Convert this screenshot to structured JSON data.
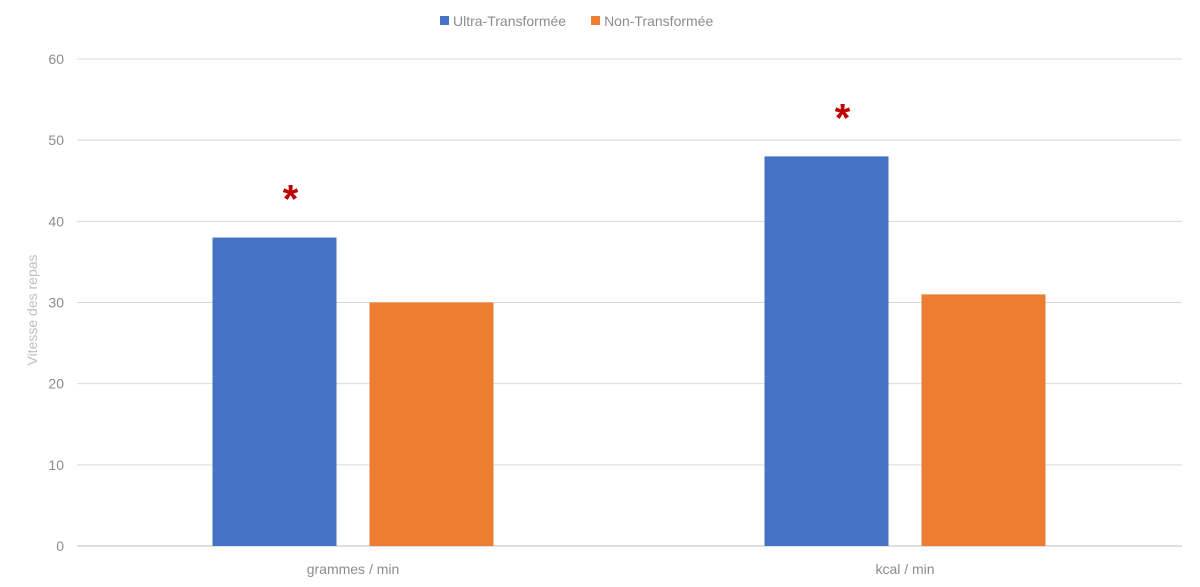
{
  "chart_data": {
    "type": "bar",
    "categories": [
      "grammes / min",
      "kcal / min"
    ],
    "series": [
      {
        "name": "Ultra-Transformée",
        "values": [
          38,
          48
        ],
        "color": "#4472C4"
      },
      {
        "name": "Non-Transformée",
        "values": [
          30,
          31
        ],
        "color": "#ED7D31"
      }
    ],
    "ylabel": "Vitesse des repas",
    "xlabel": "",
    "ylim": [
      0,
      60
    ],
    "yticks": [
      "0",
      "10",
      "20",
      "30",
      "40",
      "50",
      "60"
    ],
    "grid": true,
    "legend_position": "top-center",
    "annotations": [
      {
        "text": "*",
        "category": "grammes / min",
        "series": "Ultra-Transformée",
        "color": "#C00000"
      },
      {
        "text": "*",
        "category": "kcal / min",
        "series": "Ultra-Transformée",
        "color": "#C00000"
      }
    ]
  }
}
